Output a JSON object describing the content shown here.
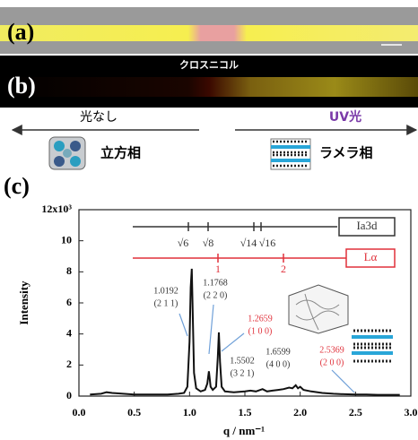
{
  "panels": {
    "a_label": "(a)",
    "b_label": "(b)",
    "b_caption": "クロスニコル",
    "left_label": "光なし",
    "right_label": "UV光",
    "left_phase": "立方相",
    "right_phase": "ラメラ相",
    "c_label": "(c)"
  },
  "chart_data": {
    "type": "line",
    "ylabel": "Intensity",
    "xlabel": "q / nm⁻¹",
    "color": "#111111",
    "x": [
      0.1,
      0.2,
      0.25,
      0.3,
      0.4,
      0.5,
      0.6,
      0.7,
      0.8,
      0.9,
      0.95,
      0.98,
      1.0,
      1.01,
      1.02,
      1.03,
      1.04,
      1.06,
      1.1,
      1.14,
      1.16,
      1.175,
      1.19,
      1.21,
      1.24,
      1.255,
      1.265,
      1.275,
      1.29,
      1.32,
      1.4,
      1.5,
      1.55,
      1.6,
      1.66,
      1.7,
      1.75,
      1.8,
      1.85,
      1.9,
      1.93,
      1.96,
      1.98,
      2.0,
      2.03,
      2.1,
      2.2,
      2.3,
      2.4,
      2.5,
      2.6,
      2.7,
      2.8,
      2.9
    ],
    "values": [
      0.1,
      0.15,
      0.25,
      0.2,
      0.15,
      0.1,
      0.1,
      0.1,
      0.1,
      0.15,
      0.2,
      0.6,
      3.5,
      7,
      8.2,
      5,
      1.5,
      0.5,
      0.3,
      0.4,
      0.8,
      1.6,
      0.6,
      0.4,
      0.6,
      2.5,
      4.1,
      2.2,
      0.6,
      0.3,
      0.25,
      0.3,
      0.35,
      0.3,
      0.45,
      0.3,
      0.35,
      0.4,
      0.45,
      0.55,
      0.5,
      0.7,
      0.5,
      0.6,
      0.4,
      0.3,
      0.2,
      0.15,
      0.12,
      0.1,
      0.1,
      0.08,
      0.08,
      0.08
    ],
    "xlim": [
      0,
      3
    ],
    "ylim": [
      0,
      12
    ],
    "xticks": [
      {
        "value": 0,
        "label": "0.0"
      },
      0.5,
      {
        "value": 1,
        "label": "1.0"
      },
      1.5,
      {
        "value": 2,
        "label": "2.0"
      },
      2.5,
      {
        "value": 3,
        "label": "3.0"
      }
    ],
    "yticks": [
      0,
      2,
      4,
      6,
      8,
      10,
      {
        "value": 12,
        "label": "12x10³"
      }
    ],
    "reference_lines": [
      {
        "name": "Ia3d",
        "color": "#333333",
        "tick_labels": [
          "√6",
          "√8",
          "√14",
          "√16"
        ]
      },
      {
        "name": "Lα",
        "color": "#e0303a",
        "tick_labels": [
          "1",
          "2"
        ]
      }
    ],
    "annotations": [
      {
        "text": "1.0192",
        "sub": "(2 1 1)",
        "color": "#333333"
      },
      {
        "text": "1.1768",
        "sub": "(2 2 0)",
        "color": "#333333"
      },
      {
        "text": "1.2659",
        "sub": "(1 0 0)",
        "color": "#e0303a"
      },
      {
        "text": "1.5502",
        "sub": "(3 2 1)",
        "color": "#333333"
      },
      {
        "text": "1.6599",
        "sub": "(4 0 0)",
        "color": "#333333"
      },
      {
        "text": "2.5369",
        "sub": "(2 0 0)",
        "color": "#e0303a"
      }
    ]
  }
}
